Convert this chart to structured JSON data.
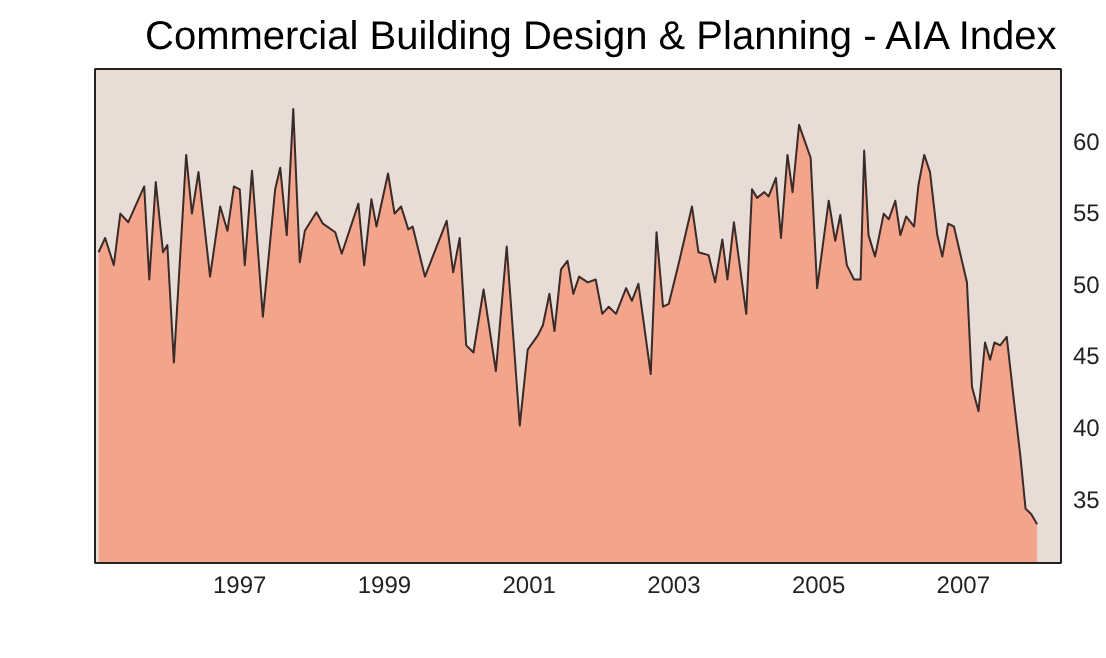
{
  "chart_data": {
    "type": "area",
    "title": "Commercial Building Design & Planning - AIA Index",
    "x": [
      1995.05,
      1995.14,
      1995.26,
      1995.35,
      1995.46,
      1995.68,
      1995.75,
      1995.84,
      1995.94,
      1996.0,
      1996.09,
      1996.26,
      1996.34,
      1996.43,
      1996.59,
      1996.73,
      1996.83,
      1996.92,
      1997.0,
      1997.07,
      1997.17,
      1997.32,
      1997.49,
      1997.56,
      1997.65,
      1997.74,
      1997.83,
      1997.9,
      1998.06,
      1998.15,
      1998.32,
      1998.41,
      1998.64,
      1998.72,
      1998.82,
      1998.89,
      1999.05,
      1999.14,
      1999.23,
      1999.33,
      1999.39,
      1999.56,
      1999.86,
      1999.95,
      2000.04,
      2000.13,
      2000.23,
      2000.37,
      2000.54,
      2000.69,
      2000.87,
      2000.98,
      2001.12,
      2001.19,
      2001.28,
      2001.35,
      2001.44,
      2001.53,
      2001.61,
      2001.69,
      2001.81,
      2001.92,
      2002.01,
      2002.1,
      2002.2,
      2002.34,
      2002.42,
      2002.51,
      2002.68,
      2002.76,
      2002.85,
      2002.93,
      2003.08,
      2003.25,
      2003.34,
      2003.48,
      2003.57,
      2003.67,
      2003.74,
      2003.83,
      2004.0,
      2004.08,
      2004.15,
      2004.25,
      2004.31,
      2004.41,
      2004.48,
      2004.57,
      2004.64,
      2004.73,
      2004.89,
      2004.98,
      2005.14,
      2005.23,
      2005.3,
      2005.39,
      2005.49,
      2005.58,
      2005.63,
      2005.69,
      2005.78,
      2005.9,
      2005.97,
      2006.06,
      2006.13,
      2006.21,
      2006.32,
      2006.38,
      2006.46,
      2006.54,
      2006.64,
      2006.71,
      2006.79,
      2006.87,
      2007.05,
      2007.12,
      2007.21,
      2007.3,
      2007.37,
      2007.43,
      2007.51,
      2007.6,
      2007.7,
      2007.79,
      2007.86,
      2007.94,
      2008.02
    ],
    "series": [
      {
        "color": "#f2a58a",
        "values": [
          52.2,
          53.2,
          51.3,
          54.9,
          54.3,
          56.8,
          50.3,
          57.1,
          52.2,
          52.7,
          44.5,
          59.0,
          54.9,
          57.8,
          50.5,
          55.4,
          53.7,
          56.8,
          56.6,
          51.3,
          57.9,
          47.7,
          56.6,
          58.1,
          53.4,
          62.2,
          51.5,
          53.7,
          55.0,
          54.2,
          53.6,
          52.1,
          55.6,
          51.3,
          55.9,
          54.0,
          57.7,
          54.9,
          55.4,
          53.8,
          54.0,
          50.5,
          54.4,
          50.8,
          53.2,
          45.7,
          45.2,
          49.6,
          43.9,
          52.6,
          40.1,
          45.4,
          46.4,
          47.1,
          49.3,
          46.7,
          51.0,
          51.6,
          49.3,
          50.5,
          50.1,
          50.3,
          47.9,
          48.4,
          47.9,
          49.7,
          48.8,
          50.0,
          43.7,
          53.6,
          48.4,
          48.6,
          51.7,
          55.4,
          52.2,
          52.0,
          50.1,
          53.1,
          50.3,
          54.3,
          47.9,
          56.6,
          56.0,
          56.4,
          56.1,
          57.4,
          53.2,
          59.0,
          56.4,
          61.1,
          58.8,
          49.7,
          55.8,
          53.0,
          54.8,
          51.3,
          50.3,
          50.3,
          59.3,
          53.4,
          51.9,
          54.9,
          54.5,
          55.8,
          53.4,
          54.7,
          54.0,
          56.9,
          59.0,
          57.8,
          53.4,
          51.9,
          54.2,
          54.0,
          50.1,
          42.8,
          41.1,
          45.9,
          44.7,
          45.9,
          45.7,
          46.3,
          41.8,
          37.9,
          34.3,
          33.9,
          33.2
        ]
      }
    ],
    "xlim": [
      1995.0,
      2008.35
    ],
    "ylim": [
      30.5,
      65
    ],
    "xticks": [
      1997,
      1999,
      2001,
      2003,
      2005,
      2007
    ],
    "yticks": [
      35,
      40,
      45,
      50,
      55,
      60
    ],
    "grid": false
  }
}
